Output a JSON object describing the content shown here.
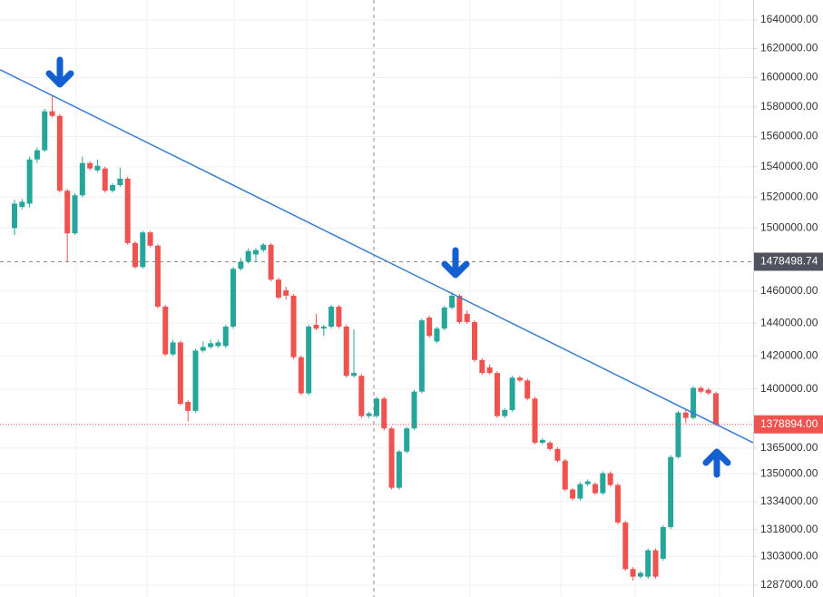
{
  "chart_data": {
    "type": "candlestick",
    "log_scale": true,
    "grid": true,
    "up_color": "#26a69a",
    "down_color": "#ef5350",
    "trendline_color": "#3a7bd5",
    "ylim": [
      1280500,
      1654100
    ],
    "yticks": [
      {
        "value": 1640000,
        "label": "1640000.00"
      },
      {
        "value": 1620000,
        "label": "1620000.00"
      },
      {
        "value": 1600000,
        "label": "1600000.00"
      },
      {
        "value": 1580000,
        "label": "1580000.00"
      },
      {
        "value": 1560000,
        "label": "1560000.00"
      },
      {
        "value": 1540000,
        "label": "1540000.00"
      },
      {
        "value": 1520000,
        "label": "1520000.00"
      },
      {
        "value": 1500000,
        "label": "1500000.00"
      },
      {
        "value": 1460000,
        "label": "1460000.00"
      },
      {
        "value": 1440000,
        "label": "1440000.00"
      },
      {
        "value": 1420000,
        "label": "1420000.00"
      },
      {
        "value": 1400000,
        "label": "1400000.00"
      },
      {
        "value": 1365000,
        "label": "1365000.00"
      },
      {
        "value": 1350000,
        "label": "1350000.00"
      },
      {
        "value": 1334000,
        "label": "1334000.00"
      },
      {
        "value": 1318000,
        "label": "1318000.00"
      },
      {
        "value": 1303000,
        "label": "1303000.00"
      },
      {
        "value": 1287000,
        "label": "1287000.00"
      }
    ],
    "crosshair_price": 1478498.74,
    "last_price": {
      "value": 1378894,
      "label": "1378894.00"
    },
    "trendline": [
      1605400,
      1368100
    ],
    "ohlc": [
      [
        1500000,
        1518200,
        1495500,
        1515800
      ],
      [
        1513600,
        1518800,
        1512100,
        1517000
      ],
      [
        1515800,
        1546700,
        1513300,
        1544800
      ],
      [
        1544800,
        1552700,
        1542400,
        1550900
      ],
      [
        1550900,
        1578800,
        1549700,
        1577000
      ],
      [
        1577000,
        1587300,
        1572700,
        1573900
      ],
      [
        1573900,
        1575200,
        1523000,
        1524200
      ],
      [
        1524200,
        1525500,
        1478500,
        1496600
      ],
      [
        1496600,
        1522400,
        1495500,
        1521200
      ],
      [
        1521200,
        1546700,
        1520000,
        1542400
      ],
      [
        1542400,
        1543600,
        1537600,
        1538800
      ],
      [
        1537600,
        1544800,
        1536400,
        1540600
      ],
      [
        1538800,
        1540000,
        1523000,
        1524200
      ],
      [
        1524200,
        1529100,
        1523000,
        1527900
      ],
      [
        1527900,
        1539400,
        1526700,
        1532100
      ],
      [
        1532100,
        1533300,
        1489300,
        1490400
      ],
      [
        1490400,
        1491500,
        1474000,
        1475100
      ],
      [
        1475100,
        1498300,
        1474000,
        1497200
      ],
      [
        1497200,
        1498300,
        1487600,
        1488700
      ],
      [
        1488700,
        1489800,
        1449200,
        1450300
      ],
      [
        1450300,
        1451400,
        1419800,
        1420900
      ],
      [
        1420900,
        1429900,
        1419800,
        1428200
      ],
      [
        1428200,
        1429400,
        1390100,
        1391100
      ],
      [
        1392200,
        1393200,
        1380600,
        1386900
      ],
      [
        1386900,
        1424300,
        1385900,
        1423200
      ],
      [
        1423200,
        1428800,
        1422000,
        1425400
      ],
      [
        1425400,
        1429900,
        1424300,
        1427700
      ],
      [
        1426000,
        1429900,
        1424900,
        1428200
      ],
      [
        1426000,
        1439000,
        1424900,
        1437900
      ],
      [
        1437900,
        1475100,
        1436700,
        1474000
      ],
      [
        1474000,
        1480800,
        1472900,
        1478500
      ],
      [
        1478500,
        1487000,
        1477400,
        1485300
      ],
      [
        1483100,
        1487000,
        1478500,
        1485900
      ],
      [
        1485900,
        1490400,
        1484700,
        1489300
      ],
      [
        1489300,
        1490400,
        1466100,
        1467200
      ],
      [
        1467200,
        1468400,
        1454800,
        1455900
      ],
      [
        1460500,
        1462700,
        1454800,
        1457100
      ],
      [
        1457100,
        1458200,
        1418100,
        1419200
      ],
      [
        1419200,
        1420300,
        1396300,
        1397400
      ],
      [
        1397400,
        1439000,
        1396300,
        1437900
      ],
      [
        1439000,
        1445800,
        1435600,
        1436700
      ],
      [
        1436700,
        1439000,
        1432200,
        1437900
      ],
      [
        1437900,
        1451400,
        1436700,
        1450300
      ],
      [
        1450300,
        1451400,
        1436700,
        1437900
      ],
      [
        1437900,
        1439000,
        1406800,
        1407900
      ],
      [
        1407900,
        1436200,
        1406800,
        1409600
      ],
      [
        1407900,
        1409000,
        1382700,
        1383800
      ],
      [
        1383800,
        1386400,
        1382700,
        1385400
      ],
      [
        1383800,
        1395300,
        1382700,
        1394200
      ],
      [
        1394200,
        1395300,
        1375400,
        1376500
      ],
      [
        1376500,
        1377500,
        1340900,
        1341900
      ],
      [
        1341900,
        1363900,
        1340900,
        1362900
      ],
      [
        1362900,
        1377500,
        1361800,
        1376500
      ],
      [
        1376500,
        1399500,
        1375400,
        1398400
      ],
      [
        1398400,
        1442900,
        1397400,
        1441800
      ],
      [
        1443500,
        1444600,
        1431100,
        1432200
      ],
      [
        1428800,
        1437900,
        1427700,
        1436700
      ],
      [
        1436700,
        1450900,
        1435600,
        1449700
      ],
      [
        1449700,
        1459300,
        1448600,
        1457100
      ],
      [
        1457100,
        1458200,
        1439600,
        1440700
      ],
      [
        1445800,
        1448000,
        1439600,
        1440700
      ],
      [
        1440700,
        1441800,
        1416400,
        1417500
      ],
      [
        1417500,
        1418600,
        1408500,
        1409600
      ],
      [
        1413000,
        1414700,
        1408500,
        1409600
      ],
      [
        1409600,
        1410700,
        1382700,
        1383800
      ],
      [
        1383800,
        1388500,
        1382700,
        1387400
      ],
      [
        1387400,
        1407900,
        1386400,
        1406800
      ],
      [
        1406800,
        1407900,
        1404000,
        1405100
      ],
      [
        1405100,
        1406200,
        1393200,
        1394200
      ],
      [
        1394200,
        1395300,
        1367100,
        1368100
      ],
      [
        1368100,
        1370700,
        1367100,
        1369700
      ],
      [
        1368100,
        1369100,
        1363400,
        1364400
      ],
      [
        1364400,
        1365500,
        1356600,
        1357600
      ],
      [
        1357600,
        1358700,
        1339900,
        1340900
      ],
      [
        1340900,
        1341900,
        1334600,
        1335700
      ],
      [
        1335700,
        1345100,
        1334600,
        1344000
      ],
      [
        1344000,
        1346700,
        1343000,
        1345600
      ],
      [
        1344000,
        1345100,
        1337800,
        1338800
      ],
      [
        1338800,
        1351400,
        1337800,
        1350300
      ],
      [
        1350300,
        1351400,
        1342500,
        1343500
      ],
      [
        1343500,
        1344600,
        1321000,
        1322100
      ],
      [
        1322100,
        1323100,
        1294900,
        1295900
      ],
      [
        1295900,
        1297000,
        1289600,
        1291700
      ],
      [
        1291700,
        1294900,
        1290700,
        1293800
      ],
      [
        1291700,
        1307400,
        1290700,
        1306400
      ],
      [
        1306400,
        1307400,
        1290700,
        1291700
      ],
      [
        1301700,
        1320500,
        1300600,
        1319500
      ],
      [
        1319500,
        1360800,
        1318400,
        1359700
      ],
      [
        1359700,
        1386900,
        1358700,
        1385900
      ],
      [
        1385900,
        1388000,
        1379600,
        1382700
      ],
      [
        1382700,
        1401700,
        1381700,
        1400600
      ],
      [
        1400600,
        1401700,
        1397400,
        1398400
      ],
      [
        1399500,
        1400600,
        1396300,
        1397400
      ],
      [
        1397400,
        1398400,
        1378000,
        1378894
      ]
    ]
  }
}
